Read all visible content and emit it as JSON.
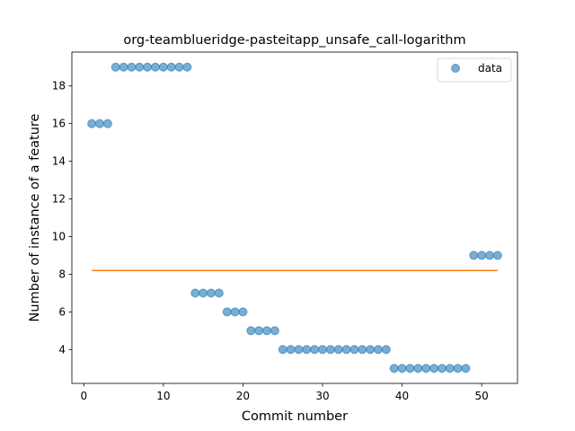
{
  "chart_data": {
    "type": "scatter",
    "title": "org-teamblueridge-pasteitapp_unsafe_call-logarithm",
    "xlabel": "Commit number",
    "ylabel": "Number of instance of a feature",
    "xlim": [
      -1.5,
      54.5
    ],
    "ylim": [
      2.2,
      19.8
    ],
    "xticks": [
      0,
      10,
      20,
      30,
      40,
      50
    ],
    "yticks": [
      4,
      6,
      8,
      10,
      12,
      14,
      16,
      18
    ],
    "grid": false,
    "legend_position": "top-right",
    "series": [
      {
        "name": "data",
        "kind": "scatter",
        "color": "#1f77b4",
        "x": [
          1,
          2,
          3,
          4,
          5,
          6,
          7,
          8,
          9,
          10,
          11,
          12,
          13,
          14,
          15,
          16,
          17,
          18,
          19,
          20,
          21,
          22,
          23,
          24,
          25,
          26,
          27,
          28,
          29,
          30,
          31,
          32,
          33,
          34,
          35,
          36,
          37,
          38,
          39,
          40,
          41,
          42,
          43,
          44,
          45,
          46,
          47,
          48,
          49,
          50,
          51,
          52
        ],
        "y": [
          16,
          16,
          16,
          19,
          19,
          19,
          19,
          19,
          19,
          19,
          19,
          19,
          19,
          7,
          7,
          7,
          7,
          6,
          6,
          6,
          5,
          5,
          5,
          5,
          4,
          4,
          4,
          4,
          4,
          4,
          4,
          4,
          4,
          4,
          4,
          4,
          4,
          4,
          3,
          3,
          3,
          3,
          3,
          3,
          3,
          3,
          3,
          3,
          9,
          9,
          9,
          9
        ]
      },
      {
        "kind": "line",
        "color": "#ff7f0e",
        "x": [
          1,
          52
        ],
        "y": [
          8.2,
          8.2
        ]
      }
    ]
  }
}
